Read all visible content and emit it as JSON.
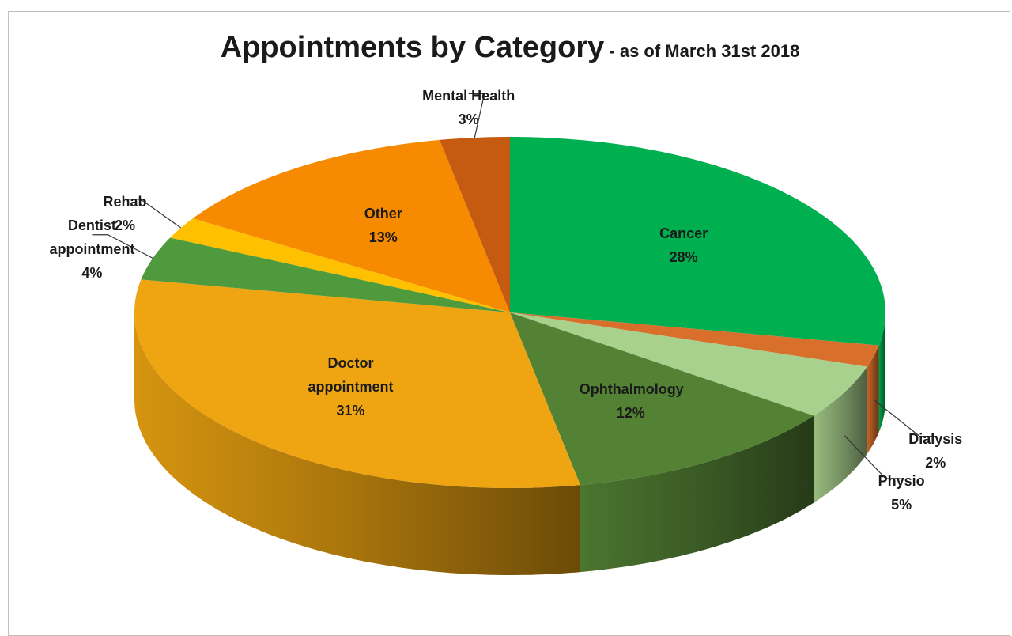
{
  "chart_data": {
    "type": "pie3d",
    "title": "Appointments by Category",
    "subtitle": " - as of March 31st 2018",
    "categories": [
      "Cancer",
      "Dialysis",
      "Physio",
      "Ophthalmology",
      "Doctor appointment",
      "Dentist appointment",
      "Rehab",
      "Other",
      "Mental Health"
    ],
    "values": [
      28,
      2,
      5,
      12,
      31,
      4,
      2,
      13,
      3
    ],
    "value_labels": [
      "28%",
      "2%",
      "5%",
      "12%",
      "31%",
      "4%",
      "2%",
      "13%",
      "3%"
    ],
    "colors": [
      "#00b050",
      "#d8702c",
      "#a9d18e",
      "#548235",
      "#eea511",
      "#4f9a3c",
      "#ffc000",
      "#f68a00",
      "#c55a11"
    ]
  }
}
